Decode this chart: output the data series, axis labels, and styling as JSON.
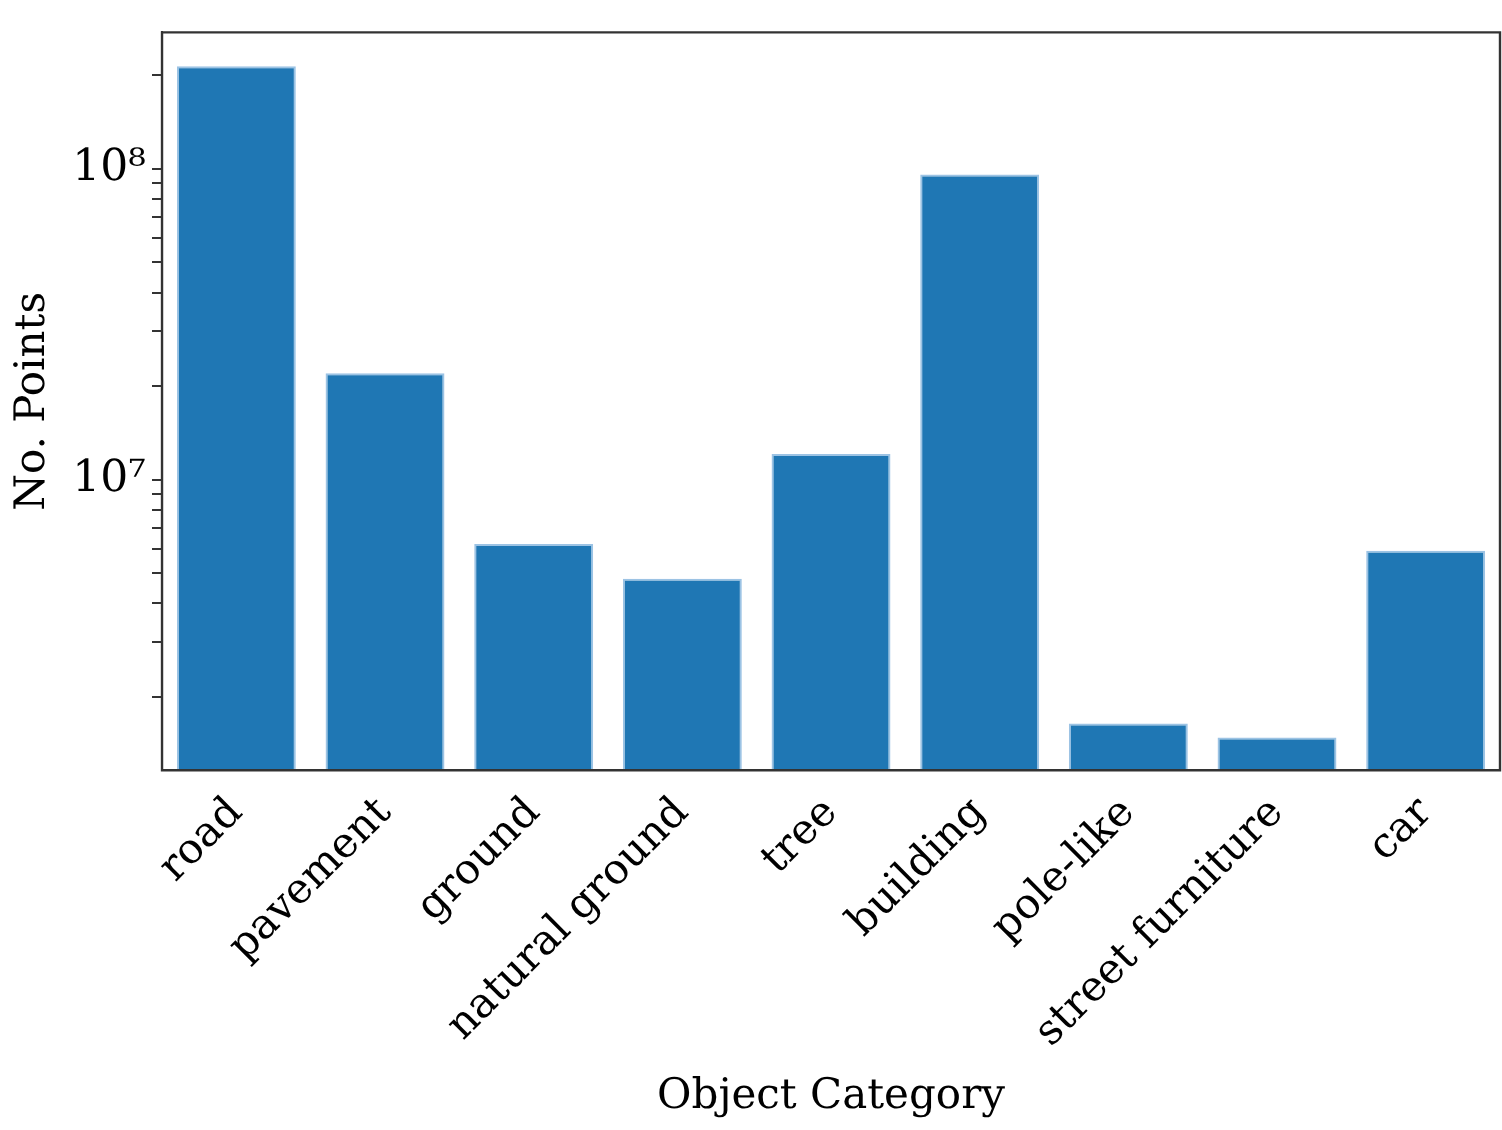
{
  "chart_data": {
    "type": "bar",
    "xlabel": "Object Category",
    "ylabel": "No. Points",
    "categories": [
      "road",
      "pavement",
      "ground",
      "natural ground",
      "tree",
      "building",
      "pole-like",
      "street furniture",
      "car"
    ],
    "values": [
      214000000,
      22000000,
      6200000,
      4800000,
      12100000,
      96000000,
      1640000,
      1480000,
      5900000
    ],
    "color": "#1f77b4",
    "log": "y",
    "ylim": [
      1160000,
      275000000
    ],
    "yticks": [
      {
        "value": 2000000,
        "label": null
      },
      {
        "value": 3000000,
        "label": null
      },
      {
        "value": 4000000,
        "label": null
      },
      {
        "value": 5000000,
        "label": null
      },
      {
        "value": 6000000,
        "label": null
      },
      {
        "value": 7000000,
        "label": null
      },
      {
        "value": 8000000,
        "label": null
      },
      {
        "value": 9000000,
        "label": null
      },
      {
        "value": 10000000,
        "label": "10⁷"
      },
      {
        "value": 20000000,
        "label": null
      },
      {
        "value": 30000000,
        "label": null
      },
      {
        "value": 40000000,
        "label": null
      },
      {
        "value": 50000000,
        "label": null
      },
      {
        "value": 60000000,
        "label": null
      },
      {
        "value": 70000000,
        "label": null
      },
      {
        "value": 80000000,
        "label": null
      },
      {
        "value": 90000000,
        "label": null
      },
      {
        "value": 100000000,
        "label": "10⁸"
      },
      {
        "value": 200000000,
        "label": null
      }
    ],
    "grid": false,
    "legend": false
  }
}
